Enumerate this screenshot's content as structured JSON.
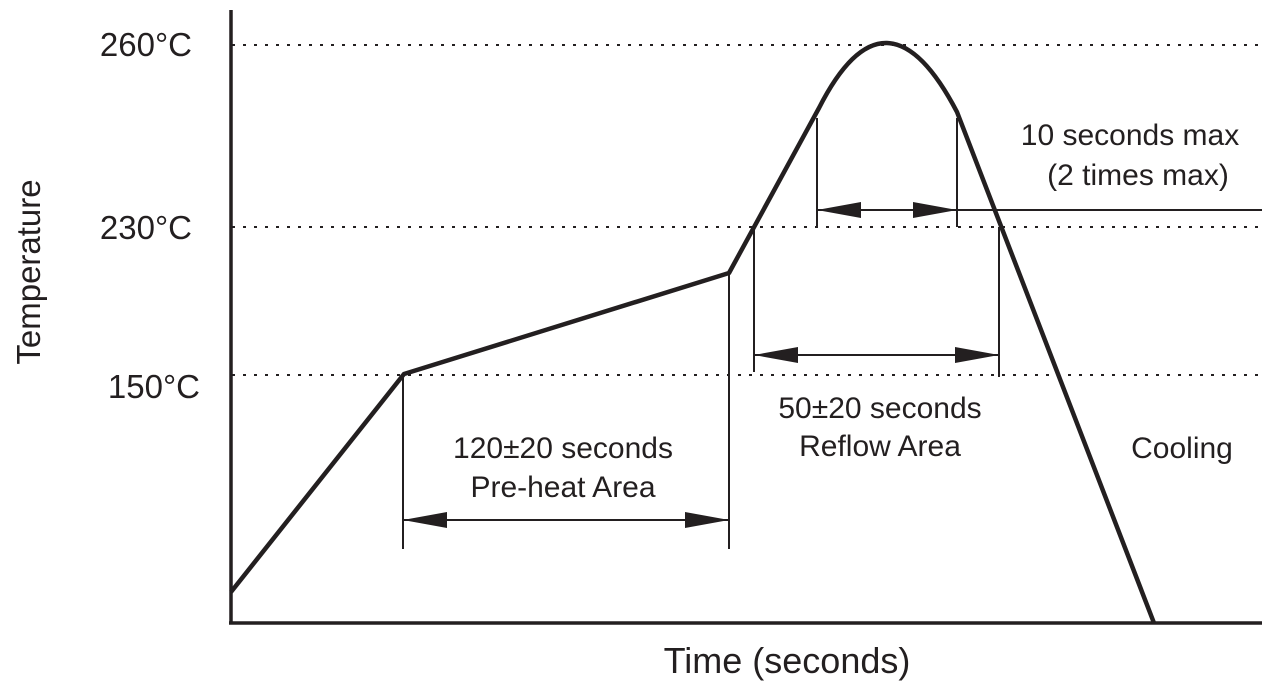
{
  "chart_data": {
    "type": "line",
    "xlabel": "Time (seconds)",
    "ylabel": "Temperature",
    "y_ticks": [
      {
        "value": 150,
        "label": "150°C"
      },
      {
        "value": 230,
        "label": "230°C"
      },
      {
        "value": 260,
        "label": "260°C"
      }
    ],
    "grid": "dotted lines at 150°C, 230°C and 260°C",
    "profile": [
      {
        "t": 0,
        "temp": 25
      },
      {
        "t": 52,
        "temp": 150
      },
      {
        "t": 152,
        "temp": 210
      },
      {
        "t": 160,
        "temp": 230
      },
      {
        "t": 180,
        "temp": 252
      },
      {
        "t": 200,
        "temp": 260
      },
      {
        "t": 223,
        "temp": 252
      },
      {
        "t": 236,
        "temp": 230
      },
      {
        "t": 284,
        "temp": 0
      }
    ],
    "annotations": {
      "preheat": {
        "duration": "120±20 seconds",
        "name": "Pre-heat Area"
      },
      "reflow": {
        "duration": "50±20 seconds",
        "name": "Reflow Area"
      },
      "peak": {
        "line1": "10 seconds max",
        "line2": "(2 times max)"
      },
      "cooling": "Cooling"
    }
  }
}
